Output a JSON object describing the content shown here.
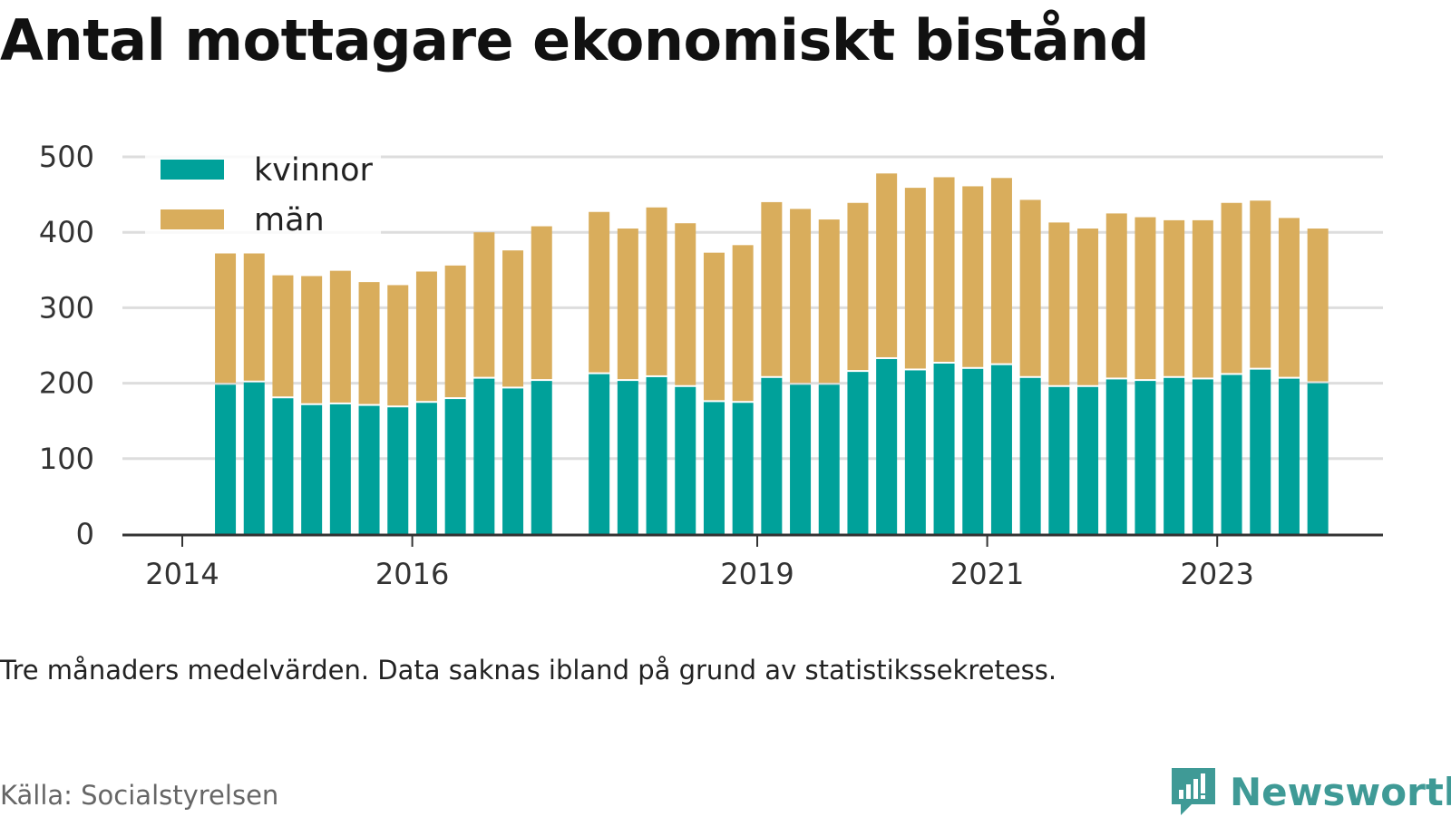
{
  "header": {
    "title": "Antal mottagare ekonomiskt bistånd"
  },
  "footer": {
    "note": "Tre månaders medelvärden. Data saknas ibland på grund av statistikssekretess.",
    "source": "Källa: Socialstyrelsen",
    "brand": "Newsworthy"
  },
  "colors": {
    "kvinnor": "#00a19a",
    "man": "#d9ad5c",
    "grid": "#dddddd",
    "axis": "#333333",
    "brand": "#3f9a96"
  },
  "chart_data": {
    "type": "bar",
    "stacked": true,
    "title": "Antal mottagare ekonomiskt bistånd",
    "xlabel": "",
    "ylabel": "",
    "ylim": [
      0,
      500
    ],
    "yticks": [
      0,
      100,
      200,
      300,
      400,
      500
    ],
    "grid": true,
    "legend_position": "top-left",
    "x_tick_labels": [
      "2014",
      "2016",
      "2019",
      "2021",
      "2023"
    ],
    "x_unit": "year",
    "x": [
      2014.375,
      2014.625,
      2014.875,
      2015.125,
      2015.375,
      2015.625,
      2015.875,
      2016.125,
      2016.375,
      2016.625,
      2016.875,
      2017.125,
      2017.625,
      2017.875,
      2018.125,
      2018.375,
      2018.625,
      2018.875,
      2019.125,
      2019.375,
      2019.625,
      2019.875,
      2020.125,
      2020.375,
      2020.625,
      2020.875,
      2021.125,
      2021.375,
      2021.625,
      2021.875,
      2022.125,
      2022.375,
      2022.625,
      2022.875,
      2023.125,
      2023.375,
      2023.625,
      2023.875
    ],
    "series": [
      {
        "name": "kvinnor",
        "values": [
          198,
          201,
          180,
          171,
          172,
          170,
          168,
          174,
          179,
          206,
          193,
          203,
          212,
          203,
          208,
          195,
          175,
          174,
          207,
          198,
          198,
          215,
          232,
          217,
          226,
          219,
          224,
          207,
          195,
          195,
          205,
          203,
          207,
          205,
          211,
          218,
          206,
          200
        ]
      },
      {
        "name": "män",
        "values": [
          174,
          171,
          163,
          171,
          177,
          164,
          162,
          174,
          177,
          194,
          183,
          205,
          215,
          202,
          225,
          217,
          198,
          209,
          233,
          233,
          219,
          224,
          246,
          242,
          247,
          242,
          248,
          236,
          218,
          210,
          220,
          217,
          209,
          211,
          228,
          224,
          213,
          205
        ]
      }
    ]
  }
}
